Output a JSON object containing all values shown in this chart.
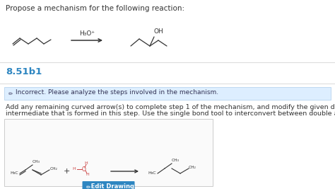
{
  "title_text": "Propose a mechanism for the following reaction:",
  "title_fontsize": 7.5,
  "section_label": "8.51b1",
  "section_label_color": "#2e86c1",
  "section_label_fontsize": 9.5,
  "alert_text": "Incorrect. Please analyze the steps involved in the mechanism.",
  "alert_bg": "#ddeeff",
  "alert_border": "#b8d4ee",
  "body_line1": "Add any remaining curved arrow(s) to complete step 1 of the mechanism, and modify the given drawing as needed to show the",
  "body_line2": "intermediate that is formed in this step. Use the single bond tool to interconvert between double and single bonds.",
  "body_fontsize": 6.8,
  "button_text": "  Edit Drawing",
  "button_color": "#2e86c1",
  "reagent_text": "H₃O⁺",
  "bg_color": "#f0f0f0",
  "white": "#ffffff",
  "dark": "#333333",
  "red": "#cc4444",
  "drawing_box_bg": "#fafafa",
  "drawing_box_border": "#cccccc",
  "sep_color": "#dddddd"
}
